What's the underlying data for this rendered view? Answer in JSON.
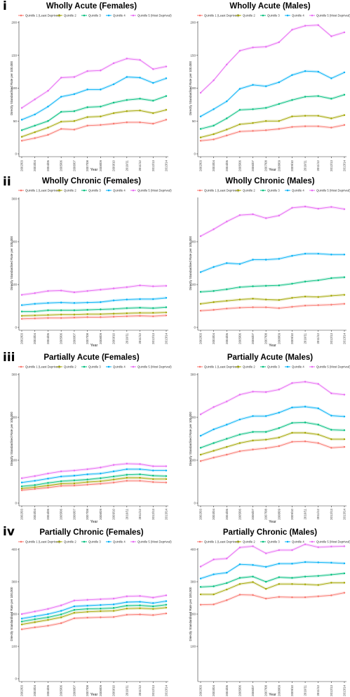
{
  "figure": {
    "row_labels": [
      "i",
      "ii",
      "iii",
      "iv"
    ],
    "legend_items": [
      {
        "label": "Quintile 1 (Least Deprived)",
        "color": "#f8766d"
      },
      {
        "label": "Quintile 2",
        "color": "#a3a500"
      },
      {
        "label": "Quintile 3",
        "color": "#00bf7d"
      },
      {
        "label": "Quintile 4",
        "color": "#00b0f6"
      },
      {
        "label": "Quintile 5 (Most Deprived)",
        "color": "#e76bf3"
      }
    ]
  },
  "chart_data": [
    {
      "type": "line",
      "title": "Wholly Acute (Females)",
      "xlabel": "Year",
      "ylabel": "Directly Standardised Rate per 100,000",
      "x": [
        "2002/03",
        "2003/04",
        "2004/05",
        "2005/06",
        "2006/07",
        "2007/08",
        "2008/09",
        "2009/10",
        "2010/11",
        "2011/12",
        "2012/13",
        "2013/14"
      ],
      "ylim": [
        0,
        200
      ],
      "yticks": [
        0,
        50,
        100,
        150,
        200
      ],
      "series": [
        {
          "name": "Quintile 1 (Least Deprived)",
          "values": [
            20,
            24,
            29,
            38,
            37,
            43,
            44,
            46,
            48,
            48,
            46,
            52
          ]
        },
        {
          "name": "Quintile 2",
          "values": [
            26,
            33,
            40,
            49,
            50,
            56,
            57,
            62,
            65,
            66,
            62,
            67
          ]
        },
        {
          "name": "Quintile 3",
          "values": [
            36,
            43,
            50,
            64,
            65,
            71,
            72,
            78,
            82,
            84,
            81,
            88
          ]
        },
        {
          "name": "Quintile 4",
          "values": [
            52,
            60,
            72,
            87,
            91,
            98,
            98,
            106,
            117,
            116,
            108,
            115
          ]
        },
        {
          "name": "Quintile 5 (Most Deprived)",
          "values": [
            70,
            83,
            96,
            116,
            117,
            126,
            127,
            138,
            145,
            143,
            129,
            133
          ]
        }
      ]
    },
    {
      "type": "line",
      "title": "Wholly Acute (Males)",
      "xlabel": "Year",
      "ylabel": "Directly Standardised Rate per 100,000",
      "x": [
        "2002/03",
        "2003/04",
        "2004/05",
        "2005/06",
        "2006/07",
        "2007/08",
        "2008/09",
        "2009/10",
        "2010/11",
        "2011/12",
        "2012/13",
        "2013/14"
      ],
      "ylim": [
        0,
        200
      ],
      "yticks": [
        0,
        50,
        100,
        150,
        200
      ],
      "series": [
        {
          "name": "Quintile 1 (Least Deprived)",
          "values": [
            20,
            22,
            28,
            34,
            35,
            36,
            38,
            41,
            42,
            42,
            40,
            44
          ]
        },
        {
          "name": "Quintile 2",
          "values": [
            25,
            30,
            37,
            45,
            47,
            50,
            50,
            57,
            58,
            58,
            54,
            59
          ]
        },
        {
          "name": "Quintile 3",
          "values": [
            38,
            43,
            54,
            67,
            68,
            70,
            76,
            82,
            87,
            88,
            84,
            90
          ]
        },
        {
          "name": "Quintile 4",
          "values": [
            57,
            68,
            80,
            99,
            105,
            103,
            109,
            120,
            126,
            125,
            115,
            124
          ]
        },
        {
          "name": "Quintile 5 (Most Deprived)",
          "values": [
            93,
            112,
            136,
            157,
            162,
            163,
            170,
            189,
            195,
            196,
            179,
            185
          ]
        }
      ]
    },
    {
      "type": "line",
      "title": "Wholly Chronic (Females)",
      "xlabel": "Year",
      "ylabel": "Directly Standardised Rate per 100,000",
      "x": [
        "2002/03",
        "2003/04",
        "2004/05",
        "2005/06",
        "2006/07",
        "2007/08",
        "2008/09",
        "2009/10",
        "2010/11",
        "2011/12",
        "2012/13",
        "2013/14"
      ],
      "ylim": [
        0,
        300
      ],
      "yticks": [
        0,
        100,
        200,
        300
      ],
      "series": [
        {
          "name": "Quintile 1 (Least Deprived)",
          "values": [
            20,
            21,
            22,
            22,
            23,
            24,
            24,
            25,
            26,
            27,
            26,
            28
          ]
        },
        {
          "name": "Quintile 2",
          "values": [
            27,
            28,
            29,
            30,
            30,
            31,
            31,
            32,
            33,
            34,
            34,
            35
          ]
        },
        {
          "name": "Quintile 3",
          "values": [
            37,
            37,
            40,
            40,
            40,
            41,
            42,
            43,
            45,
            46,
            45,
            47
          ]
        },
        {
          "name": "Quintile 4",
          "values": [
            52,
            55,
            57,
            58,
            57,
            58,
            59,
            63,
            65,
            66,
            66,
            69
          ]
        },
        {
          "name": "Quintile 5 (Most Deprived)",
          "values": [
            76,
            80,
            85,
            86,
            82,
            85,
            88,
            91,
            94,
            98,
            96,
            97
          ]
        }
      ]
    },
    {
      "type": "line",
      "title": "Wholly Chronic (Males)",
      "xlabel": "Year",
      "ylabel": "Directly Standardised Rate per 100,000",
      "x": [
        "2002/03",
        "2003/04",
        "2004/05",
        "2005/06",
        "2006/07",
        "2007/08",
        "2008/09",
        "2009/10",
        "2010/11",
        "2011/12",
        "2012/13",
        "2013/14"
      ],
      "ylim": [
        0,
        300
      ],
      "yticks": [
        0,
        100,
        200
      ],
      "series": [
        {
          "name": "Quintile 1 (Least Deprived)",
          "values": [
            39,
            41,
            44,
            46,
            47,
            47,
            45,
            48,
            51,
            52,
            53,
            55
          ]
        },
        {
          "name": "Quintile 2",
          "values": [
            55,
            59,
            62,
            65,
            67,
            65,
            64,
            69,
            72,
            71,
            74,
            76
          ]
        },
        {
          "name": "Quintile 3",
          "values": [
            83,
            85,
            89,
            94,
            96,
            97,
            98,
            102,
            107,
            110,
            115,
            117
          ]
        },
        {
          "name": "Quintile 4",
          "values": [
            129,
            141,
            150,
            148,
            158,
            158,
            160,
            167,
            172,
            172,
            170,
            170
          ]
        },
        {
          "name": "Quintile 5 (Most Deprived)",
          "values": [
            213,
            229,
            247,
            262,
            264,
            255,
            261,
            279,
            282,
            277,
            281,
            276
          ]
        }
      ]
    },
    {
      "type": "line",
      "title": "Partially Acute (Females)",
      "xlabel": "Year",
      "ylabel": "Directly Standardised Rate per 100,000",
      "x": [
        "2002/03",
        "2003/04",
        "2004/05",
        "2005/06",
        "2006/07",
        "2007/08",
        "2008/09",
        "2009/10",
        "2010/11",
        "2011/12",
        "2012/13",
        "2013/14"
      ],
      "ylim": [
        0,
        300
      ],
      "yticks": [
        0,
        100,
        200,
        300
      ],
      "series": [
        {
          "name": "Quintile 1 (Least Deprived)",
          "values": [
            30,
            33,
            36,
            40,
            41,
            43,
            45,
            48,
            52,
            52,
            49,
            48
          ]
        },
        {
          "name": "Quintile 2",
          "values": [
            34,
            37,
            41,
            45,
            46,
            49,
            51,
            55,
            59,
            59,
            56,
            56
          ]
        },
        {
          "name": "Quintile 3",
          "values": [
            39,
            42,
            47,
            51,
            53,
            55,
            58,
            62,
            66,
            67,
            64,
            63
          ]
        },
        {
          "name": "Quintile 4",
          "values": [
            48,
            52,
            57,
            62,
            64,
            67,
            69,
            74,
            79,
            79,
            76,
            76
          ]
        },
        {
          "name": "Quintile 5 (Most Deprived)",
          "values": [
            58,
            63,
            69,
            74,
            76,
            79,
            83,
            89,
            92,
            91,
            86,
            86
          ]
        }
      ]
    },
    {
      "type": "line",
      "title": "Partially Acute (Males)",
      "xlabel": "Year",
      "ylabel": "Directly Standardised Rate per 100,000",
      "x": [
        "2002/03",
        "2003/04",
        "2004/05",
        "2005/06",
        "2006/07",
        "2007/08",
        "2008/09",
        "2009/10",
        "2010/11",
        "2011/12",
        "2012/13",
        "2013/14"
      ],
      "ylim": [
        0,
        300
      ],
      "yticks": [
        0,
        100,
        200,
        300
      ],
      "series": [
        {
          "name": "Quintile 1 (Least Deprived)",
          "values": [
            98,
            106,
            113,
            121,
            125,
            128,
            133,
            143,
            144,
            140,
            129,
            131
          ]
        },
        {
          "name": "Quintile 2",
          "values": [
            113,
            122,
            131,
            140,
            146,
            148,
            153,
            164,
            164,
            160,
            149,
            149
          ]
        },
        {
          "name": "Quintile 3",
          "values": [
            129,
            140,
            150,
            160,
            166,
            166,
            175,
            187,
            188,
            183,
            171,
            170
          ]
        },
        {
          "name": "Quintile 4",
          "values": [
            157,
            172,
            183,
            195,
            203,
            203,
            211,
            223,
            225,
            221,
            204,
            202
          ]
        },
        {
          "name": "Quintile 5 (Most Deprived)",
          "values": [
            207,
            224,
            237,
            253,
            260,
            259,
            265,
            280,
            283,
            278,
            256,
            253
          ]
        }
      ]
    },
    {
      "type": "line",
      "title": "Partially Chronic (Females)",
      "xlabel": "Year",
      "ylabel": "Directly Standardised Rate per 100,000",
      "x": [
        "2002/03",
        "2003/04",
        "2004/05",
        "2005/06",
        "2006/07",
        "2007/08",
        "2008/09",
        "2009/10",
        "2010/11",
        "2011/12",
        "2012/13",
        "2013/14"
      ],
      "ylim": [
        0,
        400
      ],
      "yticks": [
        0,
        100,
        200,
        300,
        400
      ],
      "series": [
        {
          "name": "Quintile 1 (Least Deprived)",
          "values": [
            153,
            159,
            164,
            172,
            187,
            189,
            190,
            191,
            198,
            199,
            197,
            202
          ]
        },
        {
          "name": "Quintile 2",
          "values": [
            168,
            175,
            182,
            190,
            204,
            207,
            209,
            210,
            217,
            218,
            216,
            220
          ]
        },
        {
          "name": "Quintile 3",
          "values": [
            177,
            184,
            190,
            199,
            213,
            216,
            217,
            219,
            226,
            227,
            224,
            229
          ]
        },
        {
          "name": "Quintile 4",
          "values": [
            186,
            193,
            200,
            210,
            224,
            226,
            228,
            230,
            237,
            238,
            234,
            240
          ]
        },
        {
          "name": "Quintile 5 (Most Deprived)",
          "values": [
            200,
            208,
            216,
            227,
            242,
            244,
            246,
            248,
            255,
            256,
            251,
            258
          ]
        }
      ]
    },
    {
      "type": "line",
      "title": "Partially Chronic (Males)",
      "xlabel": "Year",
      "ylabel": "Directly Standardised Rate per 100,000",
      "x": [
        "2002/03",
        "2003/04",
        "2004/05",
        "2005/06",
        "2006/07",
        "2007/08",
        "2008/09",
        "2009/10",
        "2010/11",
        "2011/12",
        "2012/13",
        "2013/14"
      ],
      "ylim": [
        0,
        400
      ],
      "yticks": [
        100,
        200,
        300,
        400
      ],
      "series": [
        {
          "name": "Quintile 1 (Least Deprived)",
          "values": [
            229,
            230,
            243,
            260,
            259,
            248,
            253,
            252,
            252,
            255,
            258,
            266
          ]
        },
        {
          "name": "Quintile 2",
          "values": [
            261,
            261,
            276,
            293,
            299,
            278,
            293,
            293,
            292,
            290,
            297,
            297
          ]
        },
        {
          "name": "Quintile 3",
          "values": [
            284,
            286,
            296,
            312,
            316,
            300,
            314,
            312,
            316,
            318,
            322,
            326
          ]
        },
        {
          "name": "Quintile 4",
          "values": [
            310,
            323,
            328,
            354,
            352,
            346,
            356,
            356,
            361,
            360,
            359,
            357
          ]
        },
        {
          "name": "Quintile 5 (Most Deprived)",
          "values": [
            347,
            369,
            372,
            406,
            410,
            388,
            398,
            398,
            416,
            407,
            409,
            410
          ]
        }
      ]
    }
  ]
}
